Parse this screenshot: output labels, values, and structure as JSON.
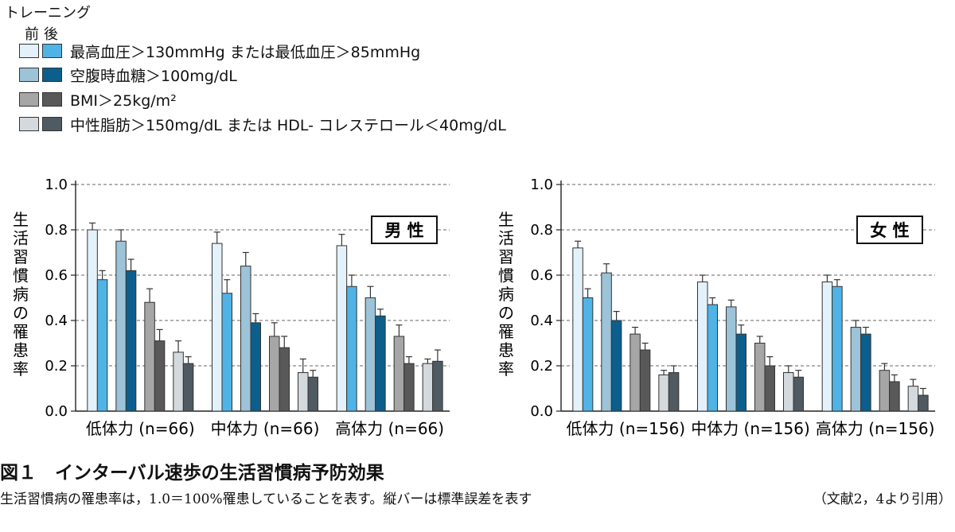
{
  "legend": {
    "title": "トレーニング",
    "header": "前後",
    "items": [
      {
        "label": "最高血圧＞130mmHg または最低血圧＞85mmHg",
        "before_color": "#e3f1fa",
        "after_color": "#4fb3e6"
      },
      {
        "label": "空腹時血糖＞100mg/dL",
        "before_color": "#9cc3d8",
        "after_color": "#0c5f8c"
      },
      {
        "label": "BMI＞25kg/m²",
        "before_color": "#a6a6a6",
        "after_color": "#595959"
      },
      {
        "label": "中性脂肪＞150mg/dL または HDL- コレステロール＜40mg/dL",
        "before_color": "#d4d9dd",
        "after_color": "#4f5a62"
      }
    ]
  },
  "chart_data": [
    {
      "type": "bar",
      "title": "男 性",
      "ylabel": "生活習慣病の罹患率",
      "ylim": [
        0,
        1.0
      ],
      "yticks": [
        "0.0",
        "0.2",
        "0.4",
        "0.6",
        "0.8",
        "1.0"
      ],
      "grid": "dashed horizontal",
      "categories": [
        "低体力 (n=66)",
        "中体力 (n=66)",
        "高体力 (n=66)"
      ],
      "series": [
        {
          "name": "最高血圧＞130mmHg または最低血圧＞85mmHg",
          "before": [
            0.8,
            0.74,
            0.73
          ],
          "after": [
            0.58,
            0.52,
            0.55
          ],
          "before_err": [
            0.03,
            0.05,
            0.05
          ],
          "after_err": [
            0.04,
            0.06,
            0.05
          ]
        },
        {
          "name": "空腹時血糖＞100mg/dL",
          "before": [
            0.75,
            0.64,
            0.5
          ],
          "after": [
            0.62,
            0.39,
            0.42
          ],
          "before_err": [
            0.05,
            0.06,
            0.05
          ],
          "after_err": [
            0.05,
            0.04,
            0.03
          ]
        },
        {
          "name": "BMI＞25kg/m²",
          "before": [
            0.48,
            0.33,
            0.33
          ],
          "after": [
            0.31,
            0.28,
            0.21
          ],
          "before_err": [
            0.06,
            0.06,
            0.05
          ],
          "after_err": [
            0.05,
            0.05,
            0.03
          ]
        },
        {
          "name": "中性脂肪＞150mg/dL または HDL- コレステロール＜40mg/dL",
          "before": [
            0.26,
            0.17,
            0.21
          ],
          "after": [
            0.21,
            0.15,
            0.22
          ],
          "before_err": [
            0.05,
            0.06,
            0.02
          ],
          "after_err": [
            0.03,
            0.03,
            0.05
          ]
        }
      ]
    },
    {
      "type": "bar",
      "title": "女 性",
      "ylabel": "生活習慣病の罹患率",
      "ylim": [
        0,
        1.0
      ],
      "yticks": [
        "0.0",
        "0.2",
        "0.4",
        "0.6",
        "0.8",
        "1.0"
      ],
      "grid": "dashed horizontal",
      "categories": [
        "低体力 (n=156)",
        "中体力 (n=156)",
        "高体力 (n=156)"
      ],
      "series": [
        {
          "name": "最高血圧＞130mmHg または最低血圧＞85mmHg",
          "before": [
            0.72,
            0.57,
            0.57
          ],
          "after": [
            0.5,
            0.47,
            0.55
          ],
          "before_err": [
            0.03,
            0.03,
            0.03
          ],
          "after_err": [
            0.04,
            0.03,
            0.03
          ]
        },
        {
          "name": "空腹時血糖＞100mg/dL",
          "before": [
            0.61,
            0.46,
            0.37
          ],
          "after": [
            0.4,
            0.34,
            0.34
          ],
          "before_err": [
            0.04,
            0.03,
            0.03
          ],
          "after_err": [
            0.04,
            0.04,
            0.03
          ]
        },
        {
          "name": "BMI＞25kg/m²",
          "before": [
            0.34,
            0.3,
            0.18
          ],
          "after": [
            0.27,
            0.2,
            0.13
          ],
          "before_err": [
            0.03,
            0.03,
            0.03
          ],
          "after_err": [
            0.03,
            0.04,
            0.03
          ]
        },
        {
          "name": "中性脂肪＞150mg/dL または HDL- コレステロール＜40mg/dL",
          "before": [
            0.16,
            0.17,
            0.11
          ],
          "after": [
            0.17,
            0.15,
            0.07
          ],
          "before_err": [
            0.02,
            0.03,
            0.03
          ],
          "after_err": [
            0.03,
            0.03,
            0.03
          ]
        }
      ]
    }
  ],
  "caption": {
    "title": "図１　インターバル速歩の生活習慣病予防効果",
    "note": "生活習慣病の罹患率は，1.0＝100%罹患していることを表す。縦バーは標準誤差を表す",
    "source": "（文献2，4より引用）"
  }
}
